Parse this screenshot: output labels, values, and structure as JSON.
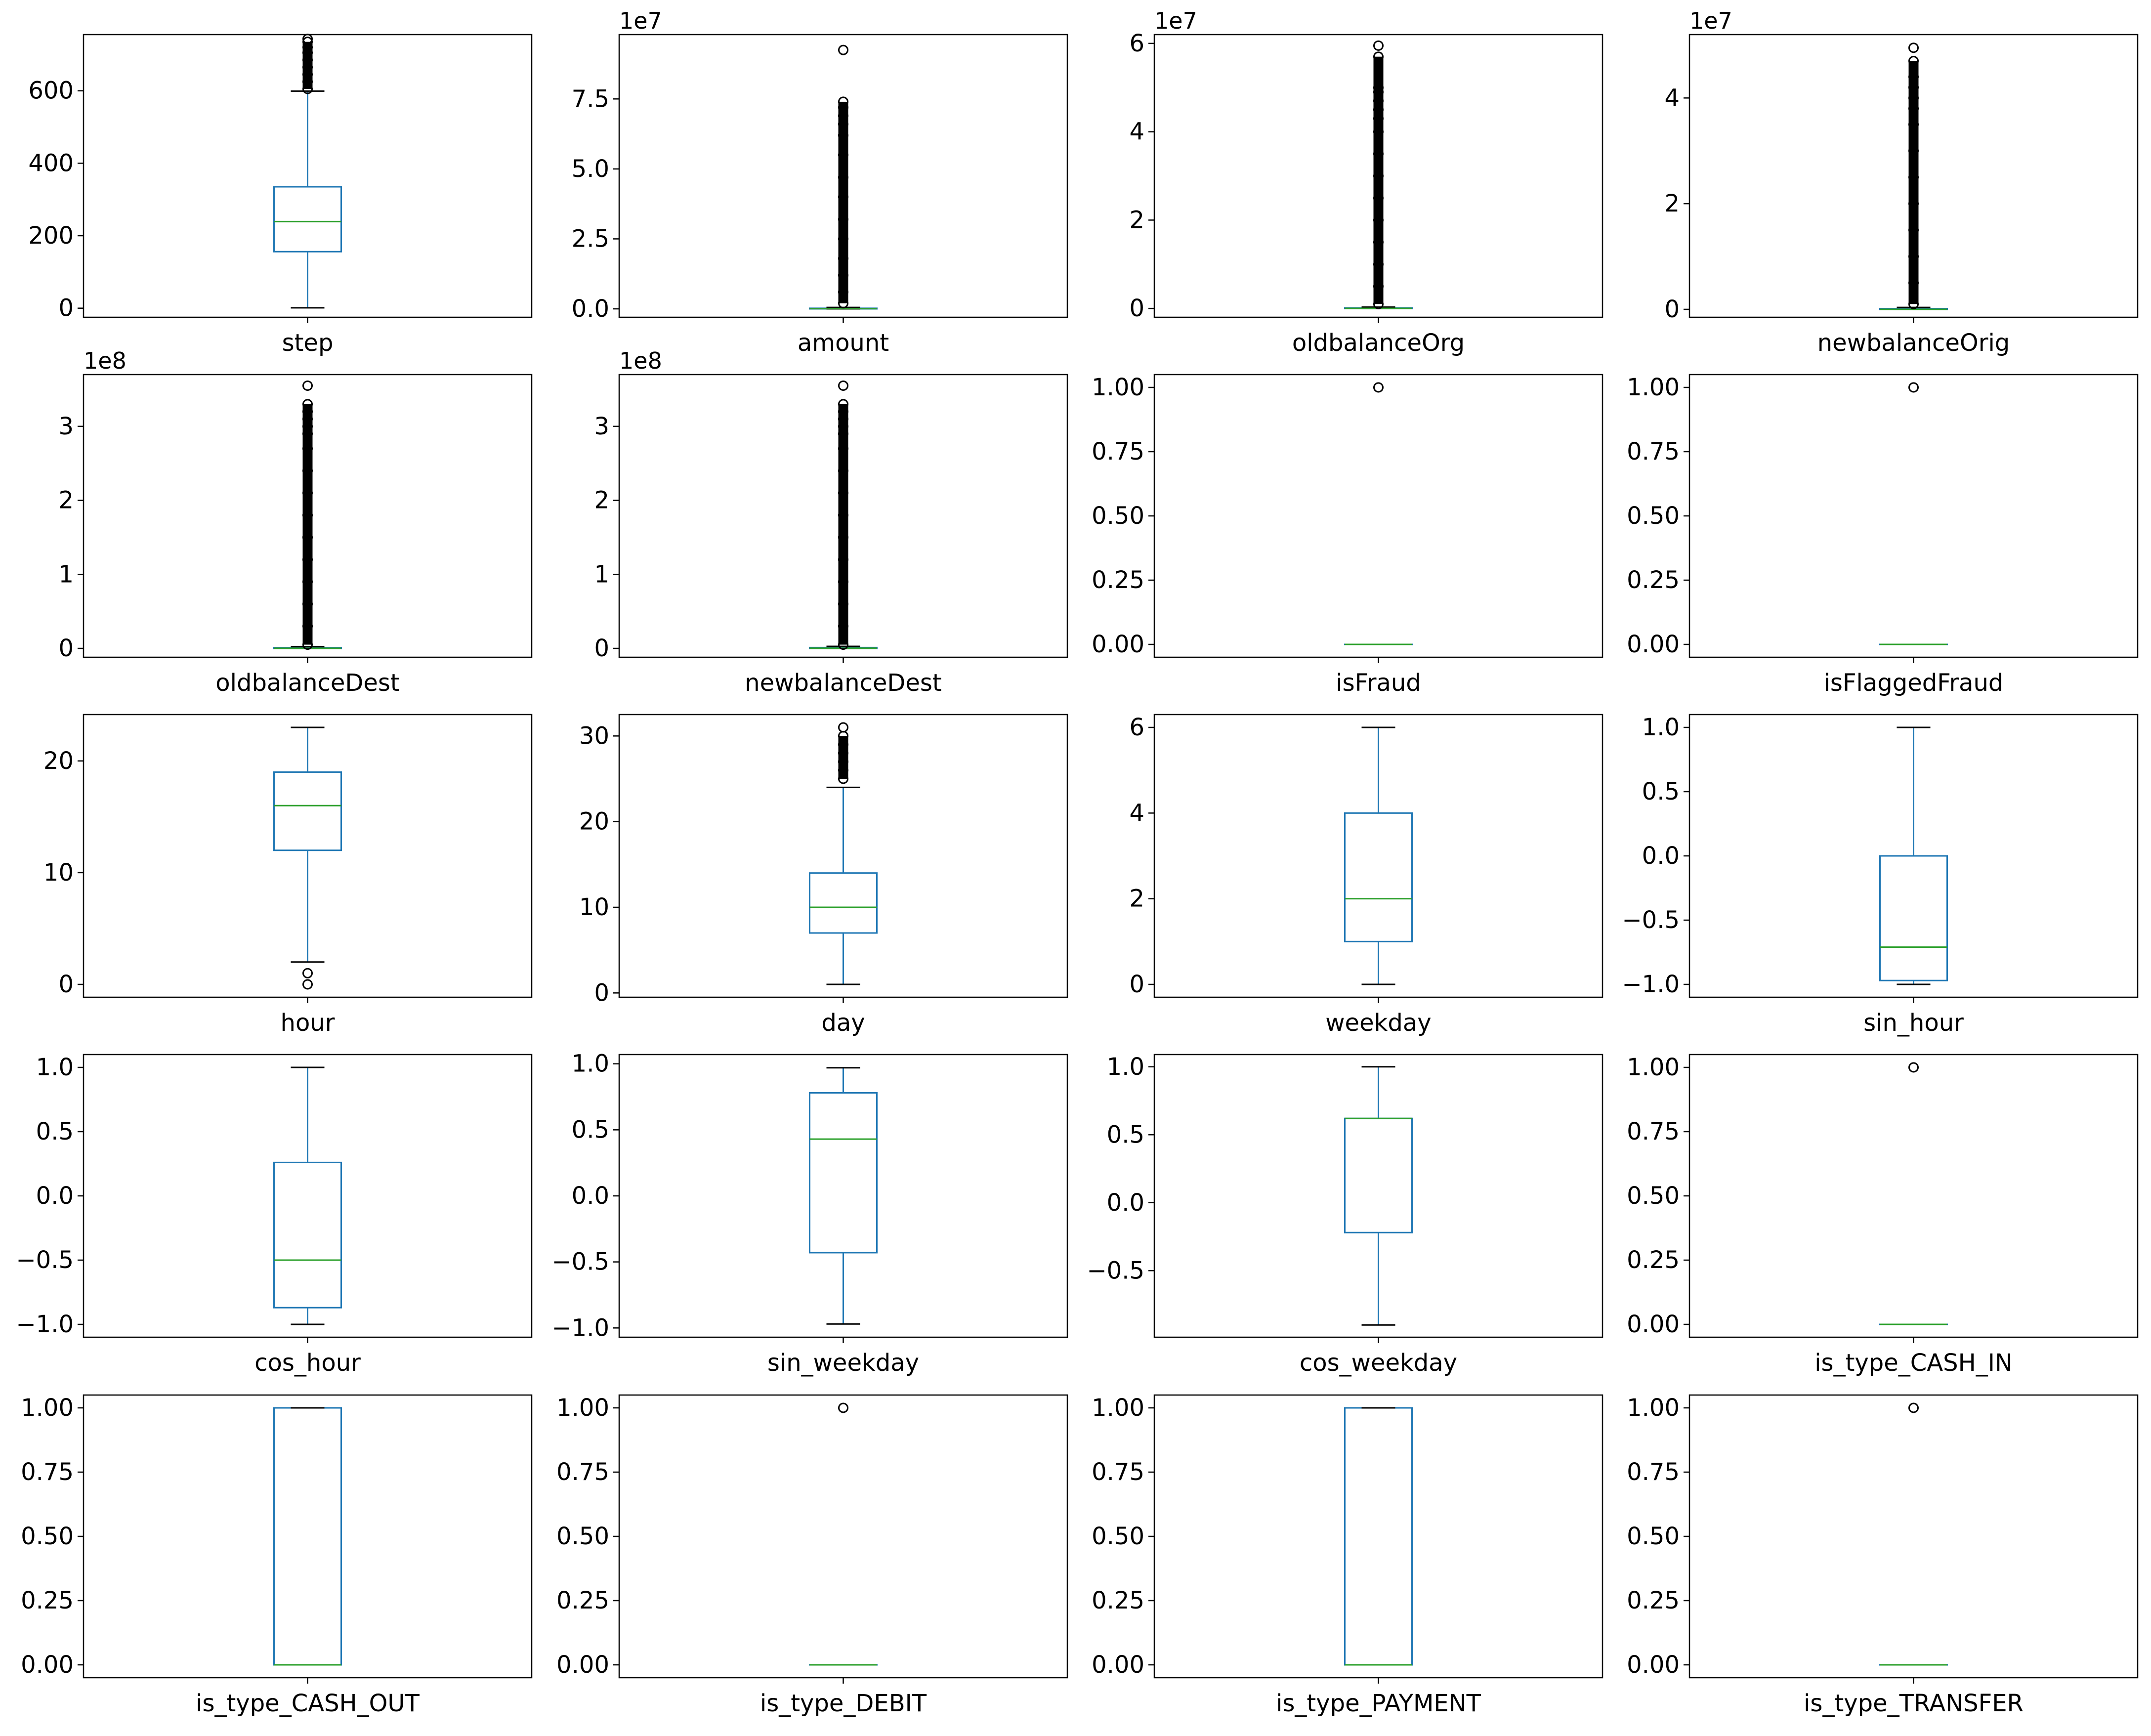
{
  "figure": {
    "layout": "5x4 grid of box plots"
  },
  "colors": {
    "box": "#1f77b4",
    "median": "#2ca02c",
    "flier": "#000000",
    "axes": "#000000"
  },
  "chart_data": [
    {
      "type": "box",
      "xlabel": "step",
      "ylim": [
        -25,
        755
      ],
      "yticks": [
        0,
        200,
        400,
        600
      ],
      "ytick_labels": [
        "0",
        "200",
        "400",
        "600"
      ],
      "offset_text": "",
      "stats": {
        "whislo": 1,
        "q1": 156,
        "med": 239,
        "q3": 335,
        "whishi": 599
      },
      "fliers": [
        605,
        625,
        645,
        665,
        685,
        705,
        720,
        735,
        743
      ]
    },
    {
      "type": "box",
      "xlabel": "amount",
      "ylim": [
        -0.3,
        9.8
      ],
      "yticks": [
        0,
        2.5,
        5.0,
        7.5
      ],
      "ytick_labels": [
        "0.0",
        "2.5",
        "5.0",
        "7.5"
      ],
      "offset_text": "1e7",
      "stats": {
        "whislo": 0,
        "q1": 0.0013,
        "med": 0.0075,
        "q3": 0.0208,
        "whishi": 0.05
      },
      "fliers": [
        0.2,
        0.6,
        1.2,
        1.8,
        2.5,
        3.2,
        4.0,
        4.7,
        5.5,
        6.2,
        6.6,
        6.9,
        7.2,
        7.4,
        9.25
      ]
    },
    {
      "type": "box",
      "xlabel": "oldbalanceOrg",
      "ylim": [
        -0.2,
        6.2
      ],
      "yticks": [
        0,
        2,
        4,
        6
      ],
      "ytick_labels": [
        "0",
        "2",
        "4",
        "6"
      ],
      "offset_text": "1e7",
      "stats": {
        "whislo": 0,
        "q1": 0,
        "med": 0.0014,
        "q3": 0.0107,
        "whishi": 0.03
      },
      "fliers": [
        0.1,
        0.5,
        1.0,
        1.5,
        2.0,
        2.5,
        3.0,
        3.5,
        4.0,
        4.3,
        4.5,
        4.7,
        4.9,
        5.0,
        5.7,
        5.95
      ]
    },
    {
      "type": "box",
      "xlabel": "newbalanceOrig",
      "ylim": [
        -0.15,
        5.2
      ],
      "yticks": [
        0,
        2,
        4
      ],
      "ytick_labels": [
        "0",
        "2",
        "4"
      ],
      "offset_text": "1e7",
      "stats": {
        "whislo": 0,
        "q1": 0,
        "med": 0,
        "q3": 0.0144,
        "whishi": 0.036
      },
      "fliers": [
        0.1,
        0.5,
        1.0,
        1.5,
        2.0,
        2.5,
        3.0,
        3.5,
        3.8,
        4.0,
        4.2,
        4.4,
        4.7,
        4.95
      ]
    },
    {
      "type": "box",
      "xlabel": "oldbalanceDest",
      "ylim": [
        -0.12,
        3.7
      ],
      "yticks": [
        0,
        1,
        2,
        3
      ],
      "ytick_labels": [
        "0",
        "1",
        "2",
        "3"
      ],
      "offset_text": "1e8",
      "stats": {
        "whislo": 0,
        "q1": 0,
        "med": 0.0013,
        "q3": 0.0094,
        "whishi": 0.023
      },
      "fliers": [
        0.05,
        0.3,
        0.6,
        0.9,
        1.2,
        1.5,
        1.8,
        2.1,
        2.4,
        2.7,
        2.9,
        3.0,
        3.1,
        3.2,
        3.3,
        3.55
      ]
    },
    {
      "type": "box",
      "xlabel": "newbalanceDest",
      "ylim": [
        -0.12,
        3.7
      ],
      "yticks": [
        0,
        1,
        2,
        3
      ],
      "ytick_labels": [
        "0",
        "1",
        "2",
        "3"
      ],
      "offset_text": "1e8",
      "stats": {
        "whislo": 0,
        "q1": 0,
        "med": 0.0022,
        "q3": 0.0111,
        "whishi": 0.027
      },
      "fliers": [
        0.05,
        0.3,
        0.6,
        0.9,
        1.2,
        1.5,
        1.8,
        2.1,
        2.4,
        2.7,
        2.9,
        3.0,
        3.1,
        3.2,
        3.3,
        3.55
      ]
    },
    {
      "type": "box",
      "xlabel": "isFraud",
      "ylim": [
        -0.05,
        1.05
      ],
      "yticks": [
        0,
        0.25,
        0.5,
        0.75,
        1.0
      ],
      "ytick_labels": [
        "0.00",
        "0.25",
        "0.50",
        "0.75",
        "1.00"
      ],
      "offset_text": "",
      "stats": {
        "whislo": 0,
        "q1": 0,
        "med": 0,
        "q3": 0,
        "whishi": 0
      },
      "fliers": [
        1
      ]
    },
    {
      "type": "box",
      "xlabel": "isFlaggedFraud",
      "ylim": [
        -0.05,
        1.05
      ],
      "yticks": [
        0,
        0.25,
        0.5,
        0.75,
        1.0
      ],
      "ytick_labels": [
        "0.00",
        "0.25",
        "0.50",
        "0.75",
        "1.00"
      ],
      "offset_text": "",
      "stats": {
        "whislo": 0,
        "q1": 0,
        "med": 0,
        "q3": 0,
        "whishi": 0
      },
      "fliers": [
        1
      ]
    },
    {
      "type": "box",
      "xlabel": "hour",
      "ylim": [
        -1.15,
        24.15
      ],
      "yticks": [
        0,
        10,
        20
      ],
      "ytick_labels": [
        "0",
        "10",
        "20"
      ],
      "offset_text": "",
      "stats": {
        "whislo": 2,
        "q1": 12,
        "med": 16,
        "q3": 19,
        "whishi": 23
      },
      "fliers": [
        0,
        1
      ]
    },
    {
      "type": "box",
      "xlabel": "day",
      "ylim": [
        -0.5,
        32.5
      ],
      "yticks": [
        0,
        10,
        20,
        30
      ],
      "ytick_labels": [
        "0",
        "10",
        "20",
        "30"
      ],
      "offset_text": "",
      "stats": {
        "whislo": 1,
        "q1": 7,
        "med": 10,
        "q3": 14,
        "whishi": 24
      },
      "fliers": [
        25,
        26,
        27,
        28,
        29,
        30,
        31
      ]
    },
    {
      "type": "box",
      "xlabel": "weekday",
      "ylim": [
        -0.3,
        6.3
      ],
      "yticks": [
        0,
        2,
        4,
        6
      ],
      "ytick_labels": [
        "0",
        "2",
        "4",
        "6"
      ],
      "offset_text": "",
      "stats": {
        "whislo": 0,
        "q1": 1,
        "med": 2,
        "q3": 4,
        "whishi": 6
      },
      "fliers": []
    },
    {
      "type": "box",
      "xlabel": "sin_hour",
      "ylim": [
        -1.1,
        1.1
      ],
      "yticks": [
        -1.0,
        -0.5,
        0.0,
        0.5,
        1.0
      ],
      "ytick_labels": [
        "−1.0",
        "−0.5",
        "0.0",
        "0.5",
        "1.0"
      ],
      "offset_text": "",
      "stats": {
        "whislo": -1.0,
        "q1": -0.97,
        "med": -0.71,
        "q3": 0.0,
        "whishi": 1.0
      },
      "fliers": []
    },
    {
      "type": "box",
      "xlabel": "cos_hour",
      "ylim": [
        -1.1,
        1.1
      ],
      "yticks": [
        -1.0,
        -0.5,
        0.0,
        0.5,
        1.0
      ],
      "ytick_labels": [
        "−1.0",
        "−0.5",
        "0.0",
        "0.5",
        "1.0"
      ],
      "offset_text": "",
      "stats": {
        "whislo": -1.0,
        "q1": -0.87,
        "med": -0.5,
        "q3": 0.26,
        "whishi": 1.0
      },
      "fliers": []
    },
    {
      "type": "box",
      "xlabel": "sin_weekday",
      "ylim": [
        -1.07,
        1.07
      ],
      "yticks": [
        -1.0,
        -0.5,
        0.0,
        0.5,
        1.0
      ],
      "ytick_labels": [
        "−1.0",
        "−0.5",
        "0.0",
        "0.5",
        "1.0"
      ],
      "offset_text": "",
      "stats": {
        "whislo": -0.97,
        "q1": -0.43,
        "med": 0.43,
        "q3": 0.78,
        "whishi": 0.97
      },
      "fliers": []
    },
    {
      "type": "box",
      "xlabel": "cos_weekday",
      "ylim": [
        -0.99,
        1.09
      ],
      "yticks": [
        -0.5,
        0.0,
        0.5,
        1.0
      ],
      "ytick_labels": [
        "−0.5",
        "0.0",
        "0.5",
        "1.0"
      ],
      "offset_text": "",
      "stats": {
        "whislo": -0.9,
        "q1": -0.22,
        "med": 0.62,
        "q3": 0.62,
        "whishi": 1.0
      },
      "fliers": []
    },
    {
      "type": "box",
      "xlabel": "is_type_CASH_IN",
      "ylim": [
        -0.05,
        1.05
      ],
      "yticks": [
        0,
        0.25,
        0.5,
        0.75,
        1.0
      ],
      "ytick_labels": [
        "0.00",
        "0.25",
        "0.50",
        "0.75",
        "1.00"
      ],
      "offset_text": "",
      "stats": {
        "whislo": 0,
        "q1": 0,
        "med": 0,
        "q3": 0,
        "whishi": 0
      },
      "fliers": [
        1
      ]
    },
    {
      "type": "box",
      "xlabel": "is_type_CASH_OUT",
      "ylim": [
        -0.05,
        1.05
      ],
      "yticks": [
        0,
        0.25,
        0.5,
        0.75,
        1.0
      ],
      "ytick_labels": [
        "0.00",
        "0.25",
        "0.50",
        "0.75",
        "1.00"
      ],
      "offset_text": "",
      "stats": {
        "whislo": 0,
        "q1": 0,
        "med": 0,
        "q3": 1,
        "whishi": 1
      },
      "fliers": []
    },
    {
      "type": "box",
      "xlabel": "is_type_DEBIT",
      "ylim": [
        -0.05,
        1.05
      ],
      "yticks": [
        0,
        0.25,
        0.5,
        0.75,
        1.0
      ],
      "ytick_labels": [
        "0.00",
        "0.25",
        "0.50",
        "0.75",
        "1.00"
      ],
      "offset_text": "",
      "stats": {
        "whislo": 0,
        "q1": 0,
        "med": 0,
        "q3": 0,
        "whishi": 0
      },
      "fliers": [
        1
      ]
    },
    {
      "type": "box",
      "xlabel": "is_type_PAYMENT",
      "ylim": [
        -0.05,
        1.05
      ],
      "yticks": [
        0,
        0.25,
        0.5,
        0.75,
        1.0
      ],
      "ytick_labels": [
        "0.00",
        "0.25",
        "0.50",
        "0.75",
        "1.00"
      ],
      "offset_text": "",
      "stats": {
        "whislo": 0,
        "q1": 0,
        "med": 0,
        "q3": 1,
        "whishi": 1
      },
      "fliers": []
    },
    {
      "type": "box",
      "xlabel": "is_type_TRANSFER",
      "ylim": [
        -0.05,
        1.05
      ],
      "yticks": [
        0,
        0.25,
        0.5,
        0.75,
        1.0
      ],
      "ytick_labels": [
        "0.00",
        "0.25",
        "0.50",
        "0.75",
        "1.00"
      ],
      "offset_text": "",
      "stats": {
        "whislo": 0,
        "q1": 0,
        "med": 0,
        "q3": 0,
        "whishi": 0
      },
      "fliers": [
        1
      ]
    }
  ]
}
